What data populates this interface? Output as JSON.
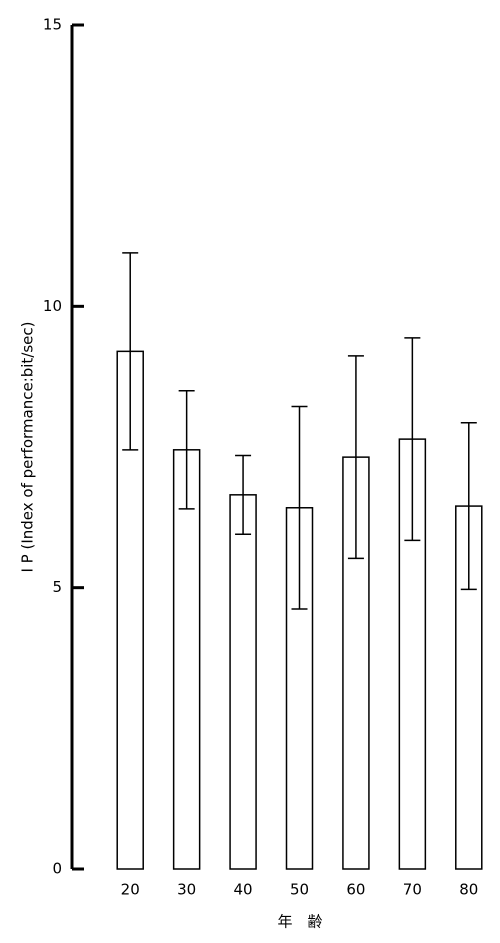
{
  "chart_data": {
    "type": "bar",
    "ylabel": "I P (Index of performance:bit/sec)",
    "xlabel": "年　齢",
    "categories": [
      "20",
      "30",
      "40",
      "50",
      "60",
      "70",
      "80"
    ],
    "values": [
      9.2,
      7.45,
      6.65,
      6.42,
      7.32,
      7.64,
      6.45
    ],
    "errors": [
      1.75,
      1.05,
      0.7,
      1.8,
      1.8,
      1.8,
      1.48
    ],
    "color": "#ffffff",
    "ylim": [
      0,
      15
    ],
    "yticks": [
      0,
      5,
      10,
      15
    ],
    "grid": false
  }
}
